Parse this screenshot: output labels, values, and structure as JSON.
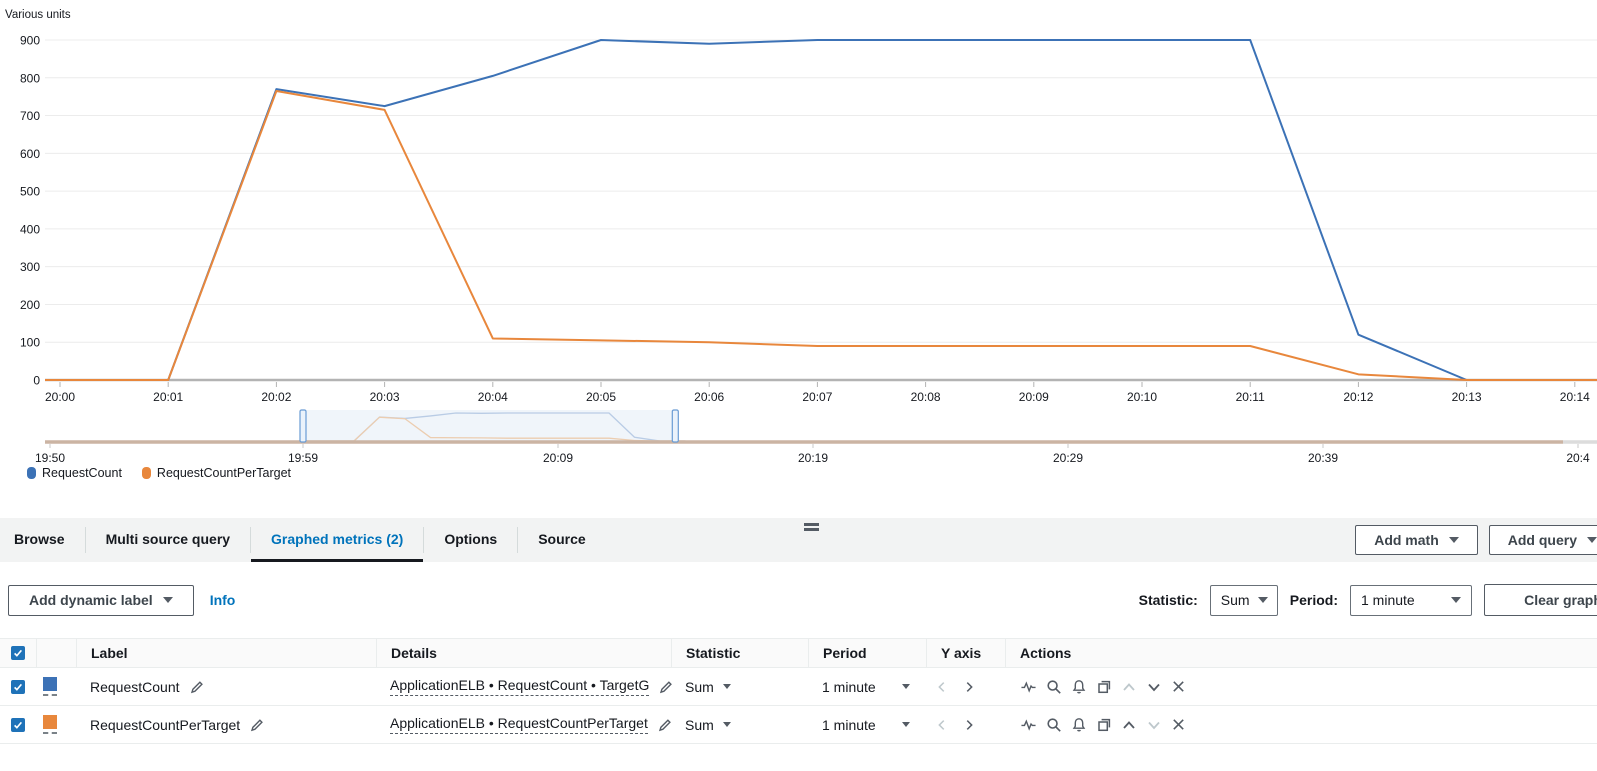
{
  "chart_data": {
    "type": "line",
    "title": "",
    "xlabel": "",
    "ylabel": "Various units",
    "x": [
      "20:00",
      "20:01",
      "20:02",
      "20:03",
      "20:04",
      "20:05",
      "20:06",
      "20:07",
      "20:08",
      "20:09",
      "20:10",
      "20:11",
      "20:12",
      "20:13",
      "20:14"
    ],
    "series": [
      {
        "name": "RequestCount",
        "color": "#3c72b6",
        "faded_color": "#b9cce5",
        "values": [
          0,
          0,
          770,
          725,
          805,
          900,
          890,
          900,
          900,
          900,
          900,
          900,
          120,
          0,
          0
        ]
      },
      {
        "name": "RequestCountPerTarget",
        "color": "#e8873c",
        "faded_color": "#eccdb0",
        "values": [
          0,
          0,
          765,
          715,
          110,
          105,
          100,
          90,
          90,
          90,
          90,
          90,
          15,
          0,
          0
        ]
      }
    ],
    "ylim": [
      0,
      900
    ],
    "ytick_step": 100,
    "grid": true,
    "legend_position": "bottom-left",
    "minimap": {
      "labels": [
        "19:50",
        "19:59",
        "20:09",
        "20:19",
        "20:29",
        "20:39",
        "20:4"
      ],
      "selection_minutes": [
        -1,
        13.6
      ],
      "baseline_color": "#cbb4a3"
    }
  },
  "legend": {
    "items": [
      {
        "label": "RequestCount",
        "color": "#3c72b6"
      },
      {
        "label": "RequestCountPerTarget",
        "color": "#e8873c"
      }
    ]
  },
  "tabs": {
    "items": [
      {
        "label": "Browse"
      },
      {
        "label": "Multi source query"
      },
      {
        "label": "Graphed metrics (2)"
      },
      {
        "label": "Options"
      },
      {
        "label": "Source"
      }
    ]
  },
  "tabbar": {
    "add_math_label": "Add math",
    "add_query_label": "Add query"
  },
  "toolbar": {
    "add_dynamic_label": "Add dynamic label",
    "info_label": "Info",
    "statistic_label": "Statistic:",
    "statistic_value": "Sum",
    "period_label": "Period:",
    "period_value": "1 minute",
    "clear_graph_label": "Clear graph"
  },
  "table": {
    "headers": {
      "label": "Label",
      "details": "Details",
      "statistic": "Statistic",
      "period": "Period",
      "yaxis": "Y axis",
      "actions": "Actions"
    },
    "rows": [
      {
        "checked": true,
        "color": "#3c72b6",
        "label": "RequestCount",
        "details": "ApplicationELB • RequestCount • TargetG",
        "statistic": "Sum",
        "period": "1 minute",
        "up_disabled": true,
        "down_disabled": false
      },
      {
        "checked": true,
        "color": "#e8873c",
        "label": "RequestCountPerTarget",
        "details": "ApplicationELB • RequestCountPerTarget",
        "statistic": "Sum",
        "period": "1 minute",
        "up_disabled": false,
        "down_disabled": true
      }
    ]
  }
}
